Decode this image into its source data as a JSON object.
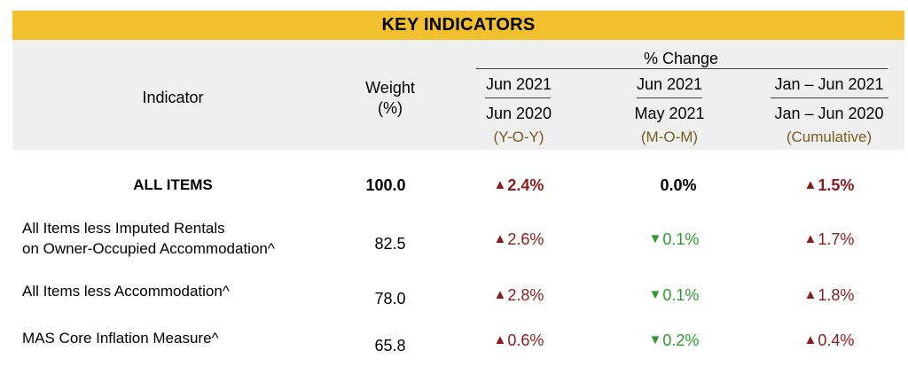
{
  "title": "KEY INDICATORS",
  "header": {
    "indicator": "Indicator",
    "weight_line1": "Weight",
    "weight_line2": "(%)",
    "pct_change": "% Change",
    "columns": [
      {
        "top": "Jun 2021",
        "bottom": "Jun 2020",
        "tag": "(Y-O-Y)"
      },
      {
        "top": "Jun 2021",
        "bottom": "May 2021",
        "tag": "(M-O-M)"
      },
      {
        "top": "Jan – Jun 2021",
        "bottom": "Jan – Jun 2020",
        "tag": "(Cumulative)"
      }
    ]
  },
  "rows": [
    {
      "label_line1": "ALL ITEMS",
      "label_line2": "",
      "weight": "100.0",
      "changes": [
        {
          "dir": "up",
          "arrow": "▲",
          "value": "2.4%"
        },
        {
          "dir": "none",
          "arrow": "",
          "value": "0.0%"
        },
        {
          "dir": "up",
          "arrow": "▲",
          "value": "1.5%"
        }
      ]
    },
    {
      "label_line1": "All Items less Imputed Rentals",
      "label_line2": "on Owner-Occupied Accommodation^",
      "weight": "82.5",
      "changes": [
        {
          "dir": "up",
          "arrow": "▲",
          "value": "2.6%"
        },
        {
          "dir": "down",
          "arrow": "▼",
          "value": "0.1%"
        },
        {
          "dir": "up",
          "arrow": "▲",
          "value": "1.7%"
        }
      ]
    },
    {
      "label_line1": "All Items less Accommodation^",
      "label_line2": "",
      "weight": "78.0",
      "changes": [
        {
          "dir": "up",
          "arrow": "▲",
          "value": "2.8%"
        },
        {
          "dir": "down",
          "arrow": "▼",
          "value": "0.1%"
        },
        {
          "dir": "up",
          "arrow": "▲",
          "value": "1.8%"
        }
      ]
    },
    {
      "label_line1": "MAS Core Inflation Measure^",
      "label_line2": "",
      "weight": "65.8",
      "changes": [
        {
          "dir": "up",
          "arrow": "▲",
          "value": "0.6%"
        },
        {
          "dir": "down",
          "arrow": "▼",
          "value": "0.2%"
        },
        {
          "dir": "up",
          "arrow": "▲",
          "value": "0.4%"
        }
      ]
    }
  ],
  "colors": {
    "banner": "#f2c02f",
    "header_bg": "#efefef",
    "up": "#8b1a1a",
    "down": "#2e9a2e",
    "tag": "#7a5c1e"
  }
}
